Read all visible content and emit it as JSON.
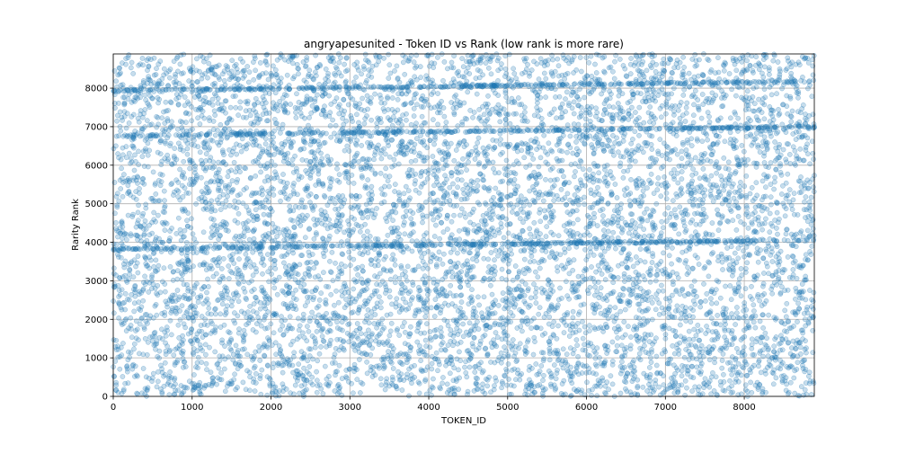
{
  "chart_data": {
    "type": "scatter",
    "title": "angryapesunited - Token ID vs Rank (low rank is more rare)",
    "xlabel": "TOKEN_ID",
    "ylabel": "Rarity Rank",
    "xlim": [
      0,
      8888
    ],
    "ylim": [
      0,
      8888
    ],
    "xticks": [
      0,
      1000,
      2000,
      3000,
      4000,
      5000,
      6000,
      7000,
      8000
    ],
    "yticks": [
      0,
      1000,
      2000,
      3000,
      4000,
      5000,
      6000,
      7000,
      8000
    ],
    "grid": true,
    "marker_color": "#1f77b4",
    "marker_alpha": 0.25,
    "series": [
      {
        "points_note_generator": "uniform",
        "n_points": 8888,
        "bands": [
          {
            "y_start": 7930,
            "y_end": 8180
          },
          {
            "y_start": 6760,
            "y_end": 7000
          },
          {
            "y_start": 3820,
            "y_end": 4060
          }
        ]
      }
    ]
  }
}
